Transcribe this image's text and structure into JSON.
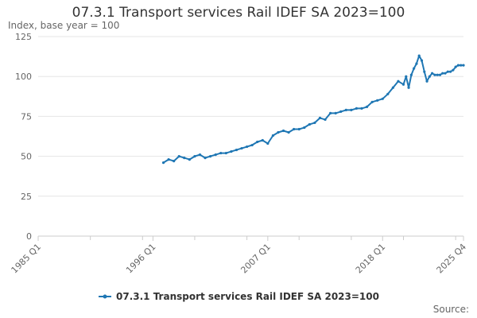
{
  "source_label": "Source:",
  "chart_data": {
    "type": "line",
    "title": "07.3.1 Transport services Rail IDEF SA 2023=100",
    "ylabel": "Index, base year = 100",
    "xlabel": "",
    "ylim": [
      0,
      125
    ],
    "y_ticks": [
      0,
      25,
      50,
      75,
      100,
      125
    ],
    "x_range": [
      "1985 Q1",
      "2025 Q4"
    ],
    "x_tick_labels": [
      "1985 Q1",
      "1996 Q1",
      "2007 Q1",
      "2018 Q1",
      "2025 Q4"
    ],
    "grid": true,
    "legend_position": "bottom",
    "colors": {
      "series": "#1f77b4",
      "grid": "#e6e6e6",
      "axis": "#cccccc"
    },
    "series": [
      {
        "name": "07.3.1 Transport services Rail IDEF SA 2023=100",
        "x": [
          "1997 Q1",
          "1997 Q3",
          "1998 Q1",
          "1998 Q3",
          "1999 Q1",
          "1999 Q3",
          "2000 Q1",
          "2000 Q3",
          "2001 Q1",
          "2001 Q3",
          "2002 Q1",
          "2002 Q3",
          "2003 Q1",
          "2003 Q3",
          "2004 Q1",
          "2004 Q3",
          "2005 Q1",
          "2005 Q3",
          "2006 Q1",
          "2006 Q3",
          "2007 Q1",
          "2007 Q3",
          "2008 Q1",
          "2008 Q3",
          "2009 Q1",
          "2009 Q3",
          "2010 Q1",
          "2010 Q3",
          "2011 Q1",
          "2011 Q3",
          "2012 Q1",
          "2012 Q3",
          "2013 Q1",
          "2013 Q3",
          "2014 Q1",
          "2014 Q3",
          "2015 Q1",
          "2015 Q3",
          "2016 Q1",
          "2016 Q3",
          "2017 Q1",
          "2017 Q3",
          "2018 Q1",
          "2018 Q3",
          "2019 Q1",
          "2019 Q3",
          "2020 Q1",
          "2020 Q2",
          "2020 Q3",
          "2020 Q4",
          "2021 Q1",
          "2021 Q2",
          "2021 Q3",
          "2021 Q4",
          "2022 Q1",
          "2022 Q2",
          "2022 Q3",
          "2022 Q4",
          "2023 Q1",
          "2023 Q2",
          "2023 Q3",
          "2023 Q4",
          "2024 Q1",
          "2024 Q2",
          "2024 Q3",
          "2024 Q4",
          "2025 Q1",
          "2025 Q2",
          "2025 Q3",
          "2025 Q4"
        ],
        "values": [
          46,
          48,
          47,
          50,
          49,
          48,
          50,
          51,
          49,
          50,
          51,
          52,
          52,
          53,
          54,
          55,
          56,
          57,
          59,
          60,
          58,
          63,
          65,
          66,
          65,
          67,
          67,
          68,
          70,
          71,
          74,
          73,
          77,
          77,
          78,
          79,
          79,
          80,
          80,
          81,
          84,
          85,
          86,
          89,
          93,
          97,
          95,
          100,
          93,
          101,
          105,
          108,
          113,
          110,
          103,
          97,
          100,
          102,
          101,
          101,
          101,
          102,
          102,
          103,
          103,
          104,
          106,
          107,
          107,
          107
        ]
      }
    ]
  }
}
